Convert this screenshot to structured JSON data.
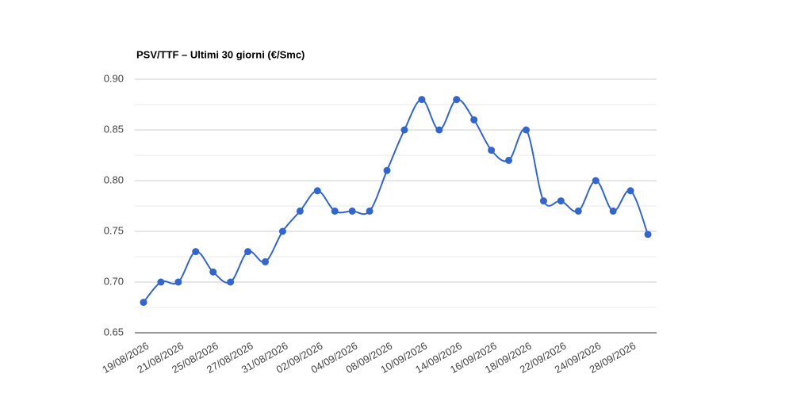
{
  "chart_data": {
    "type": "line",
    "title": "PSV/TTF – Ultimi 30 giorni (€/Smc)",
    "categories": [
      "19/08/2026",
      null,
      "21/08/2026",
      null,
      "25/08/2026",
      null,
      "27/08/2026",
      null,
      "31/08/2026",
      null,
      "02/09/2026",
      null,
      "04/09/2026",
      null,
      "08/09/2026",
      null,
      "10/09/2026",
      null,
      "14/09/2026",
      null,
      "16/09/2026",
      null,
      "18/09/2026",
      null,
      "22/09/2026",
      null,
      "24/09/2026",
      null,
      "28/09/2026",
      null
    ],
    "series": [
      {
        "name": "PSV/TTF",
        "color": "#3366cc",
        "values": [
          0.68,
          0.7,
          0.7,
          0.73,
          0.71,
          0.7,
          0.73,
          0.72,
          0.75,
          0.77,
          0.79,
          0.77,
          0.77,
          0.77,
          0.81,
          0.85,
          0.88,
          0.85,
          0.88,
          0.86,
          0.83,
          0.82,
          0.85,
          0.78,
          0.78,
          0.77,
          0.8,
          0.77,
          0.79,
          0.747
        ]
      }
    ],
    "ylim": [
      0.65,
      0.9
    ],
    "yticks": [
      {
        "value": 0.65,
        "label": "0.65"
      },
      {
        "value": 0.7,
        "label": "0.70"
      },
      {
        "value": 0.75,
        "label": "0.75"
      },
      {
        "value": 0.8,
        "label": "0.80"
      },
      {
        "value": 0.85,
        "label": "0.85"
      },
      {
        "value": 0.9,
        "label": "0.90"
      }
    ],
    "minor_yticks": [
      0.675,
      0.725,
      0.775,
      0.825,
      0.875
    ],
    "grid": true,
    "smooth": true
  }
}
